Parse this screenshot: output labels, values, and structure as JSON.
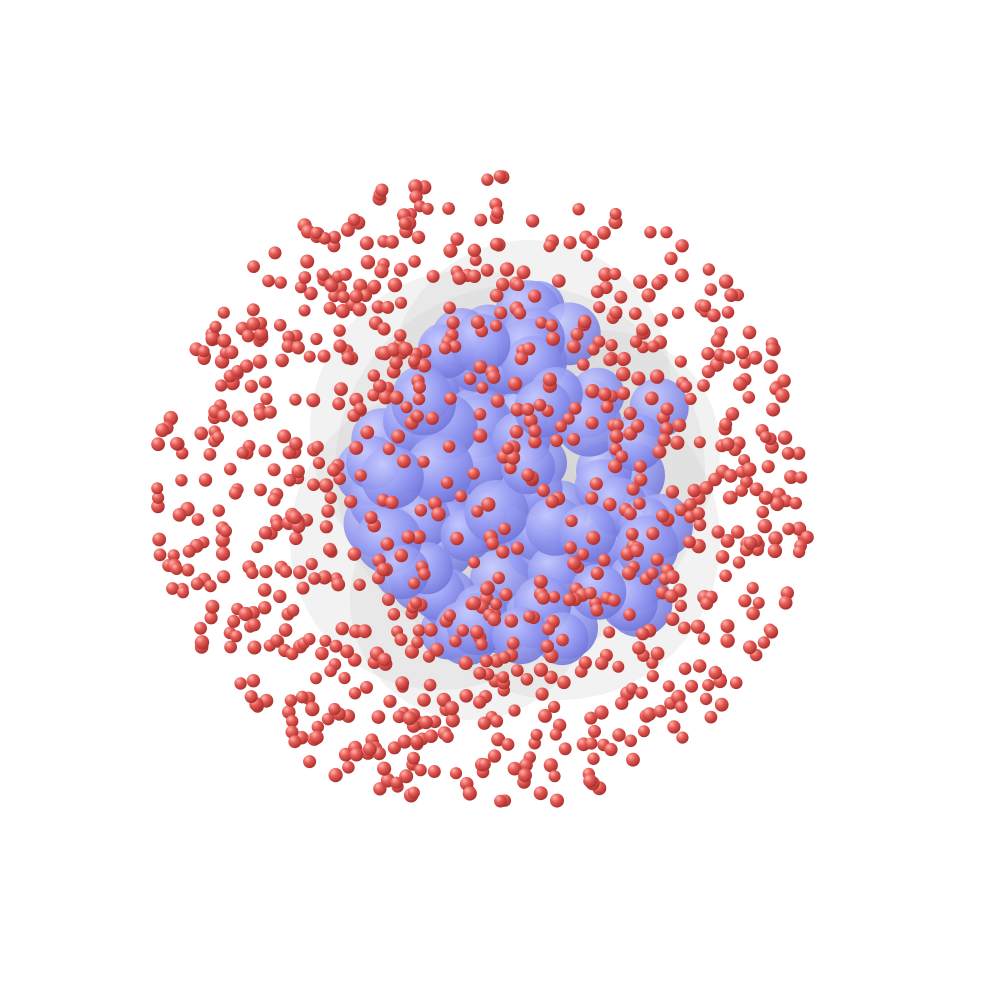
{
  "scene": {
    "background": "#ffffff",
    "core_particle_color": "#8d93f0",
    "shell_particle_color": "#e0504c",
    "membrane_color": "#cfcfcf",
    "core_particle_count": 110,
    "shell_particle_count": 900
  }
}
